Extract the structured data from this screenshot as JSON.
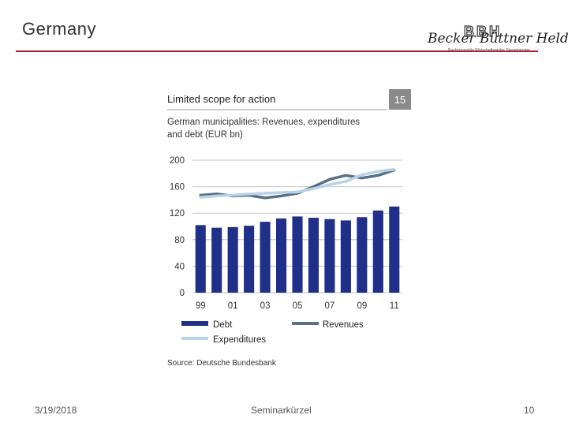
{
  "slide": {
    "title": "Germany",
    "footer_date": "3/19/2018",
    "footer_center": "Seminarkürzel",
    "page_number": "10",
    "accent_color": "#b21f24"
  },
  "logo": {
    "mark": "BBH",
    "name": "Becker Büttner Held",
    "subtitle": "Rechtsanwälte  Wirtschaftsprüfer  Steuerberater"
  },
  "chart_data": {
    "type": "bar",
    "title": "Limited scope for action",
    "subtitle": "German municipalities: Revenues, expenditures and debt (EUR bn)",
    "figure_number": "15",
    "source": "Source: Deutsche Bundesbank",
    "x": [
      1999,
      2000,
      2001,
      2002,
      2003,
      2004,
      2005,
      2006,
      2007,
      2008,
      2009,
      2010,
      2011
    ],
    "x_tick_labels": [
      "99",
      "01",
      "03",
      "05",
      "07",
      "09",
      "11"
    ],
    "ylim": [
      0,
      200
    ],
    "y_ticks": [
      0,
      40,
      80,
      120,
      160,
      200
    ],
    "grid": true,
    "legend_placement": "bottom",
    "series": [
      {
        "name": "Debt",
        "kind": "bar",
        "color": "#1f2f8a",
        "values": [
          102,
          98,
          99,
          101,
          107,
          112,
          115,
          113,
          111,
          109,
          114,
          124,
          130
        ]
      },
      {
        "name": "Revenues",
        "kind": "line",
        "color": "#5a6f82",
        "values": [
          147,
          149,
          146,
          147,
          143,
          146,
          150,
          160,
          171,
          177,
          173,
          177,
          185
        ]
      },
      {
        "name": "Expenditures",
        "kind": "line",
        "color": "#b8d2ea",
        "values": [
          144,
          146,
          147,
          149,
          150,
          151,
          152,
          157,
          163,
          168,
          178,
          183,
          186
        ]
      }
    ]
  }
}
